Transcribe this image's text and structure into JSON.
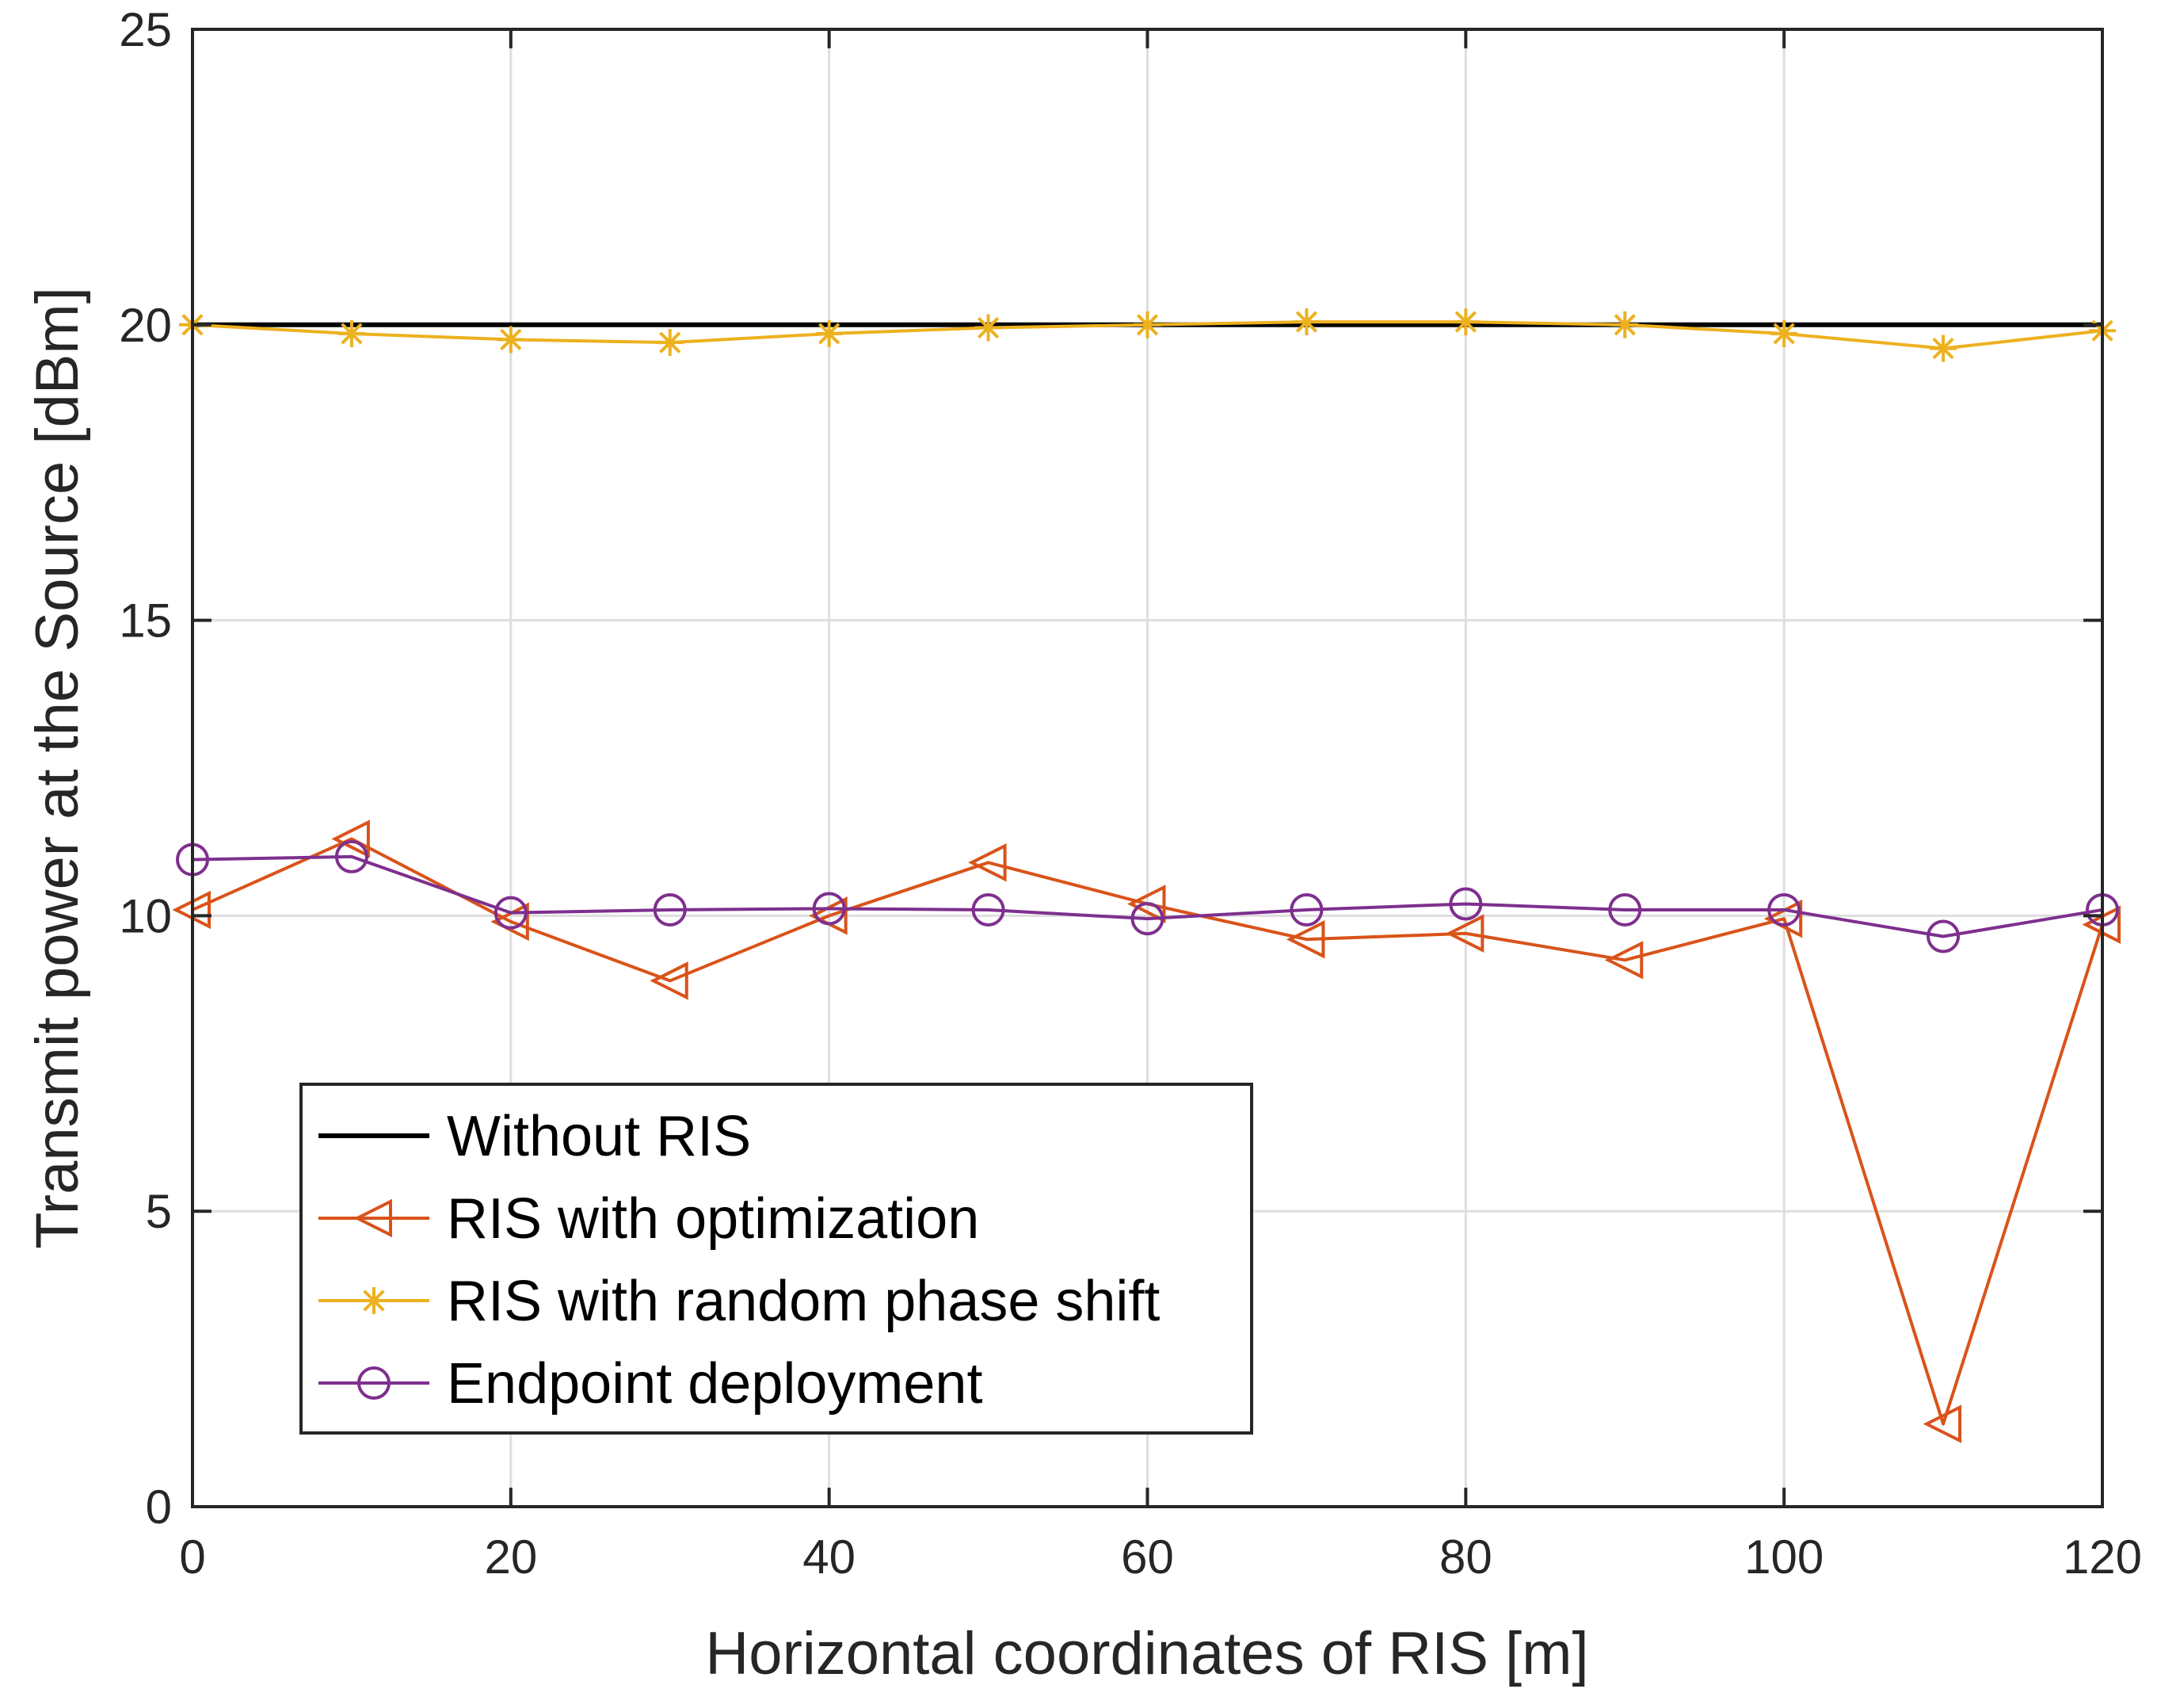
{
  "chart_data": {
    "type": "line",
    "title": "",
    "xlabel": "Horizontal coordinates of RIS [m]",
    "ylabel": "Transmit power at the Source [dBm]",
    "xlim": [
      0,
      120
    ],
    "ylim": [
      0,
      25
    ],
    "xticks": [
      0,
      20,
      40,
      60,
      80,
      100,
      120
    ],
    "yticks": [
      0,
      5,
      10,
      15,
      20,
      25
    ],
    "grid": true,
    "legend_position": "bottom-left",
    "x": [
      0,
      10,
      20,
      30,
      40,
      50,
      60,
      70,
      80,
      90,
      100,
      110,
      120
    ],
    "series": [
      {
        "name": "Without RIS",
        "color": "#000000",
        "marker": "none",
        "values": [
          20,
          20,
          20,
          20,
          20,
          20,
          20,
          20,
          20,
          20,
          20,
          20,
          20
        ]
      },
      {
        "name": "RIS with optimization",
        "color": "#D95319",
        "marker": "triangle-left",
        "values": [
          10.1,
          11.3,
          9.9,
          8.9,
          10.0,
          10.9,
          10.2,
          9.6,
          9.7,
          9.25,
          9.95,
          1.4,
          9.85
        ]
      },
      {
        "name": "RIS with random phase shift",
        "color": "#EDB120",
        "marker": "asterisk",
        "values": [
          20.0,
          19.85,
          19.75,
          19.7,
          19.85,
          19.95,
          20.0,
          20.05,
          20.05,
          20.0,
          19.85,
          19.6,
          19.9
        ]
      },
      {
        "name": "Endpoint deployment",
        "color": "#7E2F8E",
        "marker": "circle",
        "values": [
          10.95,
          11.0,
          10.05,
          10.1,
          10.12,
          10.1,
          9.95,
          10.1,
          10.2,
          10.1,
          10.1,
          9.65,
          10.1
        ]
      }
    ]
  }
}
